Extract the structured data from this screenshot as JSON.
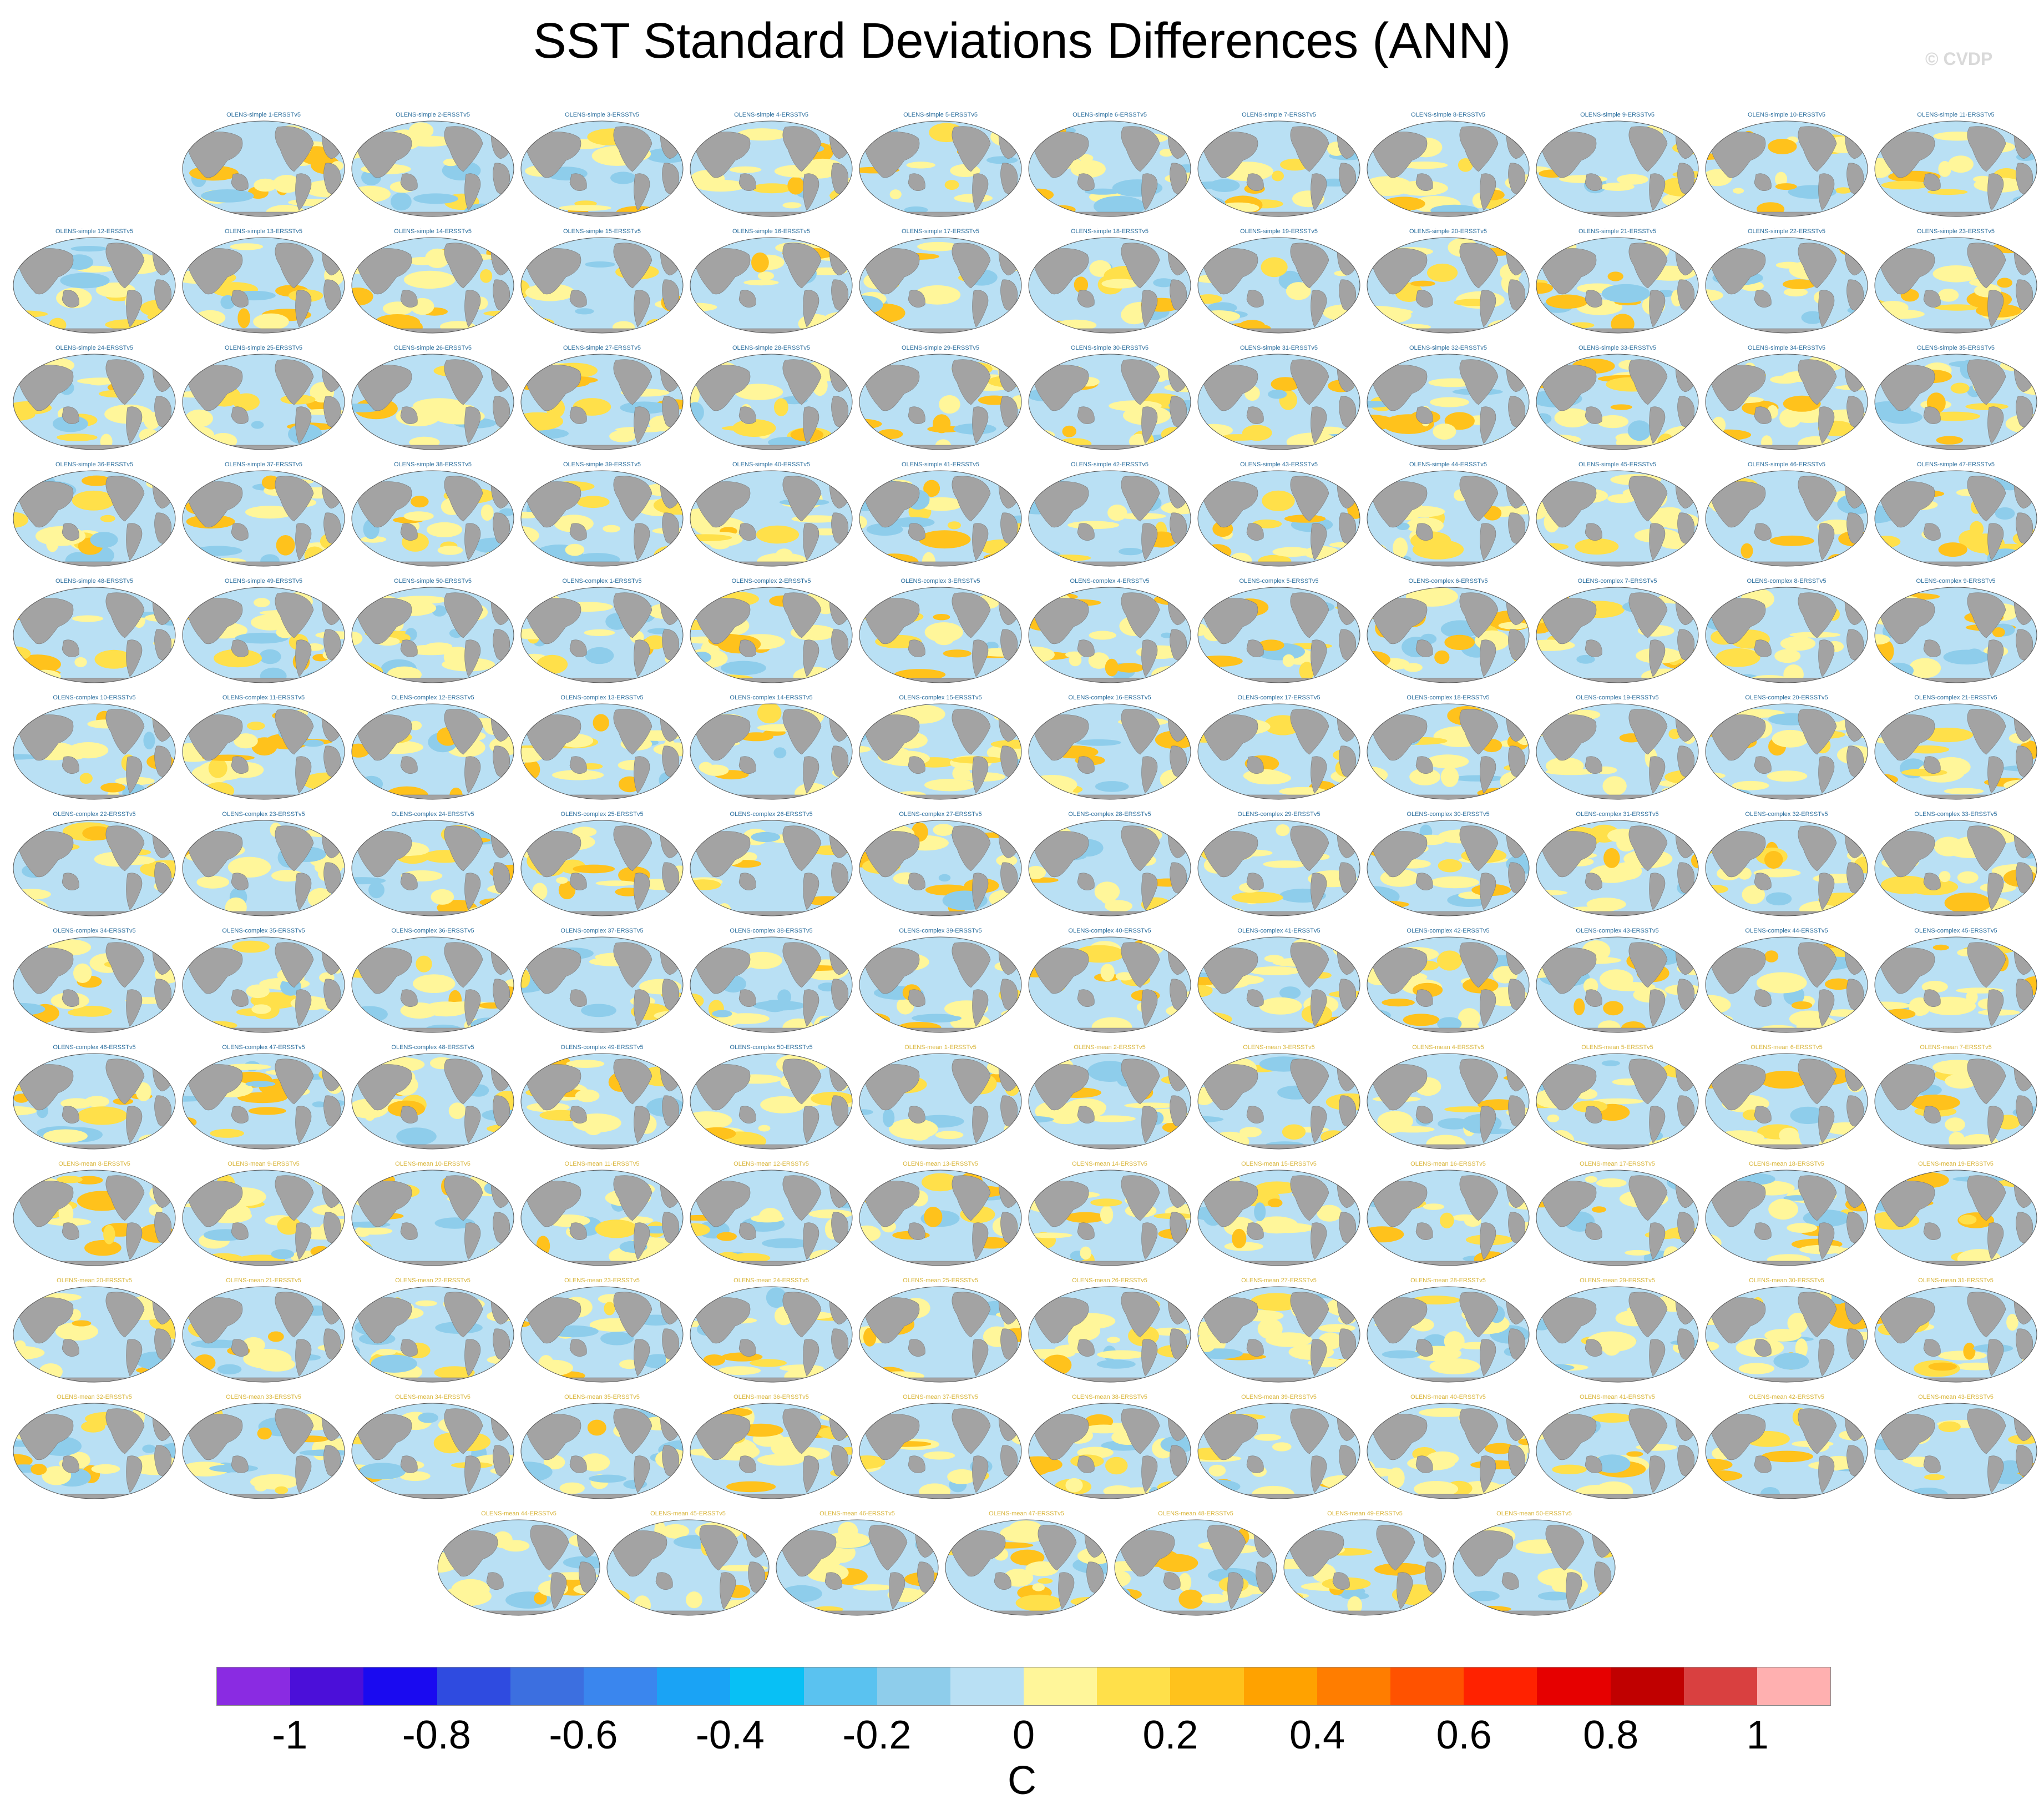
{
  "title": "SST Standard Deviations Differences (ANN)",
  "watermark": "© CVDP",
  "panels": {
    "simple_prefix": "OLENS-simple",
    "complex_prefix": "OLENS-complex",
    "mean_prefix": "OLENS-mean",
    "suffix": "-ERSSTv5",
    "count_per_group": 50,
    "labels": [
      "OLENS-simple 1-ERSSTv5",
      "OLENS-simple 2-ERSSTv5",
      "OLENS-simple 3-ERSSTv5",
      "OLENS-simple 4-ERSSTv5",
      "OLENS-simple 5-ERSSTv5",
      "OLENS-simple 6-ERSSTv5",
      "OLENS-simple 7-ERSSTv5",
      "OLENS-simple 8-ERSSTv5",
      "OLENS-simple 9-ERSSTv5",
      "OLENS-simple 10-ERSSTv5",
      "OLENS-simple 11-ERSSTv5",
      "OLENS-simple 12-ERSSTv5",
      "OLENS-simple 13-ERSSTv5",
      "OLENS-simple 14-ERSSTv5",
      "OLENS-simple 15-ERSSTv5",
      "OLENS-simple 16-ERSSTv5",
      "OLENS-simple 17-ERSSTv5",
      "OLENS-simple 18-ERSSTv5",
      "OLENS-simple 19-ERSSTv5",
      "OLENS-simple 20-ERSSTv5",
      "OLENS-simple 21-ERSSTv5",
      "OLENS-simple 22-ERSSTv5",
      "OLENS-simple 23-ERSSTv5",
      "OLENS-simple 24-ERSSTv5",
      "OLENS-simple 25-ERSSTv5",
      "OLENS-simple 26-ERSSTv5",
      "OLENS-simple 27-ERSSTv5",
      "OLENS-simple 28-ERSSTv5",
      "OLENS-simple 29-ERSSTv5",
      "OLENS-simple 30-ERSSTv5",
      "OLENS-simple 31-ERSSTv5",
      "OLENS-simple 32-ERSSTv5",
      "OLENS-simple 33-ERSSTv5",
      "OLENS-simple 34-ERSSTv5",
      "OLENS-simple 35-ERSSTv5",
      "OLENS-simple 36-ERSSTv5",
      "OLENS-simple 37-ERSSTv5",
      "OLENS-simple 38-ERSSTv5",
      "OLENS-simple 39-ERSSTv5",
      "OLENS-simple 40-ERSSTv5",
      "OLENS-simple 41-ERSSTv5",
      "OLENS-simple 42-ERSSTv5",
      "OLENS-simple 43-ERSSTv5",
      "OLENS-simple 44-ERSSTv5",
      "OLENS-simple 45-ERSSTv5",
      "OLENS-simple 46-ERSSTv5",
      "OLENS-simple 47-ERSSTv5",
      "OLENS-simple 48-ERSSTv5",
      "OLENS-simple 49-ERSSTv5",
      "OLENS-simple 50-ERSSTv5",
      "OLENS-complex 1-ERSSTv5",
      "OLENS-complex 2-ERSSTv5",
      "OLENS-complex 3-ERSSTv5",
      "OLENS-complex 4-ERSSTv5",
      "OLENS-complex 5-ERSSTv5",
      "OLENS-complex 6-ERSSTv5",
      "OLENS-complex 7-ERSSTv5",
      "OLENS-complex 8-ERSSTv5",
      "OLENS-complex 9-ERSSTv5",
      "OLENS-complex 10-ERSSTv5",
      "OLENS-complex 11-ERSSTv5",
      "OLENS-complex 12-ERSSTv5",
      "OLENS-complex 13-ERSSTv5",
      "OLENS-complex 14-ERSSTv5",
      "OLENS-complex 15-ERSSTv5",
      "OLENS-complex 16-ERSSTv5",
      "OLENS-complex 17-ERSSTv5",
      "OLENS-complex 18-ERSSTv5",
      "OLENS-complex 19-ERSSTv5",
      "OLENS-complex 20-ERSSTv5",
      "OLENS-complex 21-ERSSTv5",
      "OLENS-complex 22-ERSSTv5",
      "OLENS-complex 23-ERSSTv5",
      "OLENS-complex 24-ERSSTv5",
      "OLENS-complex 25-ERSSTv5",
      "OLENS-complex 26-ERSSTv5",
      "OLENS-complex 27-ERSSTv5",
      "OLENS-complex 28-ERSSTv5",
      "OLENS-complex 29-ERSSTv5",
      "OLENS-complex 30-ERSSTv5",
      "OLENS-complex 31-ERSSTv5",
      "OLENS-complex 32-ERSSTv5",
      "OLENS-complex 33-ERSSTv5",
      "OLENS-complex 34-ERSSTv5",
      "OLENS-complex 35-ERSSTv5",
      "OLENS-complex 36-ERSSTv5",
      "OLENS-complex 37-ERSSTv5",
      "OLENS-complex 38-ERSSTv5",
      "OLENS-complex 39-ERSSTv5",
      "OLENS-complex 40-ERSSTv5",
      "OLENS-complex 41-ERSSTv5",
      "OLENS-complex 42-ERSSTv5",
      "OLENS-complex 43-ERSSTv5",
      "OLENS-complex 44-ERSSTv5",
      "OLENS-complex 45-ERSSTv5",
      "OLENS-complex 46-ERSSTv5",
      "OLENS-complex 47-ERSSTv5",
      "OLENS-complex 48-ERSSTv5",
      "OLENS-complex 49-ERSSTv5",
      "OLENS-complex 50-ERSSTv5",
      "OLENS-mean 1-ERSSTv5",
      "OLENS-mean 2-ERSSTv5",
      "OLENS-mean 3-ERSSTv5",
      "OLENS-mean 4-ERSSTv5",
      "OLENS-mean 5-ERSSTv5",
      "OLENS-mean 6-ERSSTv5",
      "OLENS-mean 7-ERSSTv5",
      "OLENS-mean 8-ERSSTv5",
      "OLENS-mean 9-ERSSTv5",
      "OLENS-mean 10-ERSSTv5",
      "OLENS-mean 11-ERSSTv5",
      "OLENS-mean 12-ERSSTv5",
      "OLENS-mean 13-ERSSTv5",
      "OLENS-mean 14-ERSSTv5",
      "OLENS-mean 15-ERSSTv5",
      "OLENS-mean 16-ERSSTv5",
      "OLENS-mean 17-ERSSTv5",
      "OLENS-mean 18-ERSSTv5",
      "OLENS-mean 19-ERSSTv5",
      "OLENS-mean 20-ERSSTv5",
      "OLENS-mean 21-ERSSTv5",
      "OLENS-mean 22-ERSSTv5",
      "OLENS-mean 23-ERSSTv5",
      "OLENS-mean 24-ERSSTv5",
      "OLENS-mean 25-ERSSTv5",
      "OLENS-mean 26-ERSSTv5",
      "OLENS-mean 27-ERSSTv5",
      "OLENS-mean 28-ERSSTv5",
      "OLENS-mean 29-ERSSTv5",
      "OLENS-mean 30-ERSSTv5",
      "OLENS-mean 31-ERSSTv5",
      "OLENS-mean 32-ERSSTv5",
      "OLENS-mean 33-ERSSTv5",
      "OLENS-mean 34-ERSSTv5",
      "OLENS-mean 35-ERSSTv5",
      "OLENS-mean 36-ERSSTv5",
      "OLENS-mean 37-ERSSTv5",
      "OLENS-mean 38-ERSSTv5",
      "OLENS-mean 39-ERSSTv5",
      "OLENS-mean 40-ERSSTv5",
      "OLENS-mean 41-ERSSTv5",
      "OLENS-mean 42-ERSSTv5",
      "OLENS-mean 43-ERSSTv5",
      "OLENS-mean 44-ERSSTv5",
      "OLENS-mean 45-ERSSTv5",
      "OLENS-mean 46-ERSSTv5",
      "OLENS-mean 47-ERSSTv5",
      "OLENS-mean 48-ERSSTv5",
      "OLENS-mean 49-ERSSTv5",
      "OLENS-mean 50-ERSSTv5"
    ]
  },
  "colorbar": {
    "colors": [
      "#8a2be2",
      "#4b0fd9",
      "#1a0af0",
      "#2f4be0",
      "#3c6fe0",
      "#3a86ee",
      "#1aa3f5",
      "#08c0f5",
      "#5ac2f0",
      "#8ecdeb",
      "#b9e0f4",
      "#fff69a",
      "#ffe04a",
      "#ffc21c",
      "#ffa200",
      "#ff7d00",
      "#ff5200",
      "#ff2200",
      "#e60000",
      "#c00000",
      "#d94040",
      "#ffb0b0"
    ],
    "ticks": [
      "-1",
      "-0.8",
      "-0.6",
      "-0.4",
      "-0.2",
      "0",
      "0.2",
      "0.4",
      "0.6",
      "0.8",
      "1"
    ],
    "unit": "C"
  },
  "map_colors": {
    "land": "#a3a3a3",
    "ocean_neg": "#b9e0f4",
    "ocean_neg2": "#8ecdeb",
    "ocean_pos": "#fff69a",
    "ocean_pos2": "#ffe04a",
    "ocean_pos3": "#ffc21c"
  }
}
